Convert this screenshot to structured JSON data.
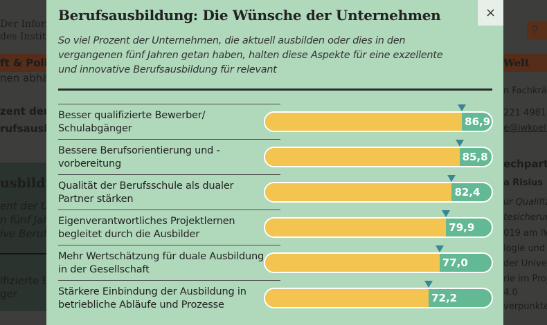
{
  "background": {
    "left": [
      "Der Inforr",
      "des Institu",
      "ft & Poli",
      "nen abhän",
      "zent der U",
      "rufsausbi",
      "usbildu",
      "ent der Un",
      "n fünf Jah",
      "ive Berufs",
      "ifizierte B",
      "ger"
    ],
    "right": [
      "Welt",
      "n Fachkräft",
      "221 4981-8",
      "e@iwkoeln",
      "echpartn",
      "a Risius",
      "ür Qualifizi",
      "tesicherung",
      "019 am IW",
      "logie und B",
      "der Univers",
      "rie im Proje",
      "4.0",
      "verpunkte:"
    ]
  },
  "modal": {
    "title": "Berufsausbildung: Die Wünsche der Unternehmen",
    "subtitle": "So viel Prozent der Unternehmen, die aktuell ausbilden oder dies in den vergangenen fünf Jahren getan haben, halten diese Aspekte für eine exzellente und innovative Berufsausbildung für relevant",
    "close_label": "×"
  },
  "chart_data": {
    "type": "bar",
    "orientation": "horizontal",
    "xlim": [
      0,
      100
    ],
    "categories": [
      "Besser qualifizierte Bewerber/ Schulabgänger",
      "Bessere Berufsorientierung und -vorbereitung",
      "Qualität der Berufsschule als dualer Partner stärken",
      "Eigenverantwortliches Projektlernen begleitet durch die Ausbilder",
      "Mehr Wertschätzung für duale Ausbildung in der Gesellschaft",
      "Stärkere Einbindung der Ausbildung in betriebliche Abläufe und Prozesse"
    ],
    "values": [
      86.9,
      85.8,
      82.4,
      79.9,
      77.0,
      72.2
    ],
    "value_labels": [
      "86,9",
      "85,8",
      "82,4",
      "79,9",
      "77,0",
      "72,2"
    ],
    "colors": {
      "fill": "#f4c451",
      "remainder": "#64b995",
      "marker": "#3a8690"
    }
  }
}
